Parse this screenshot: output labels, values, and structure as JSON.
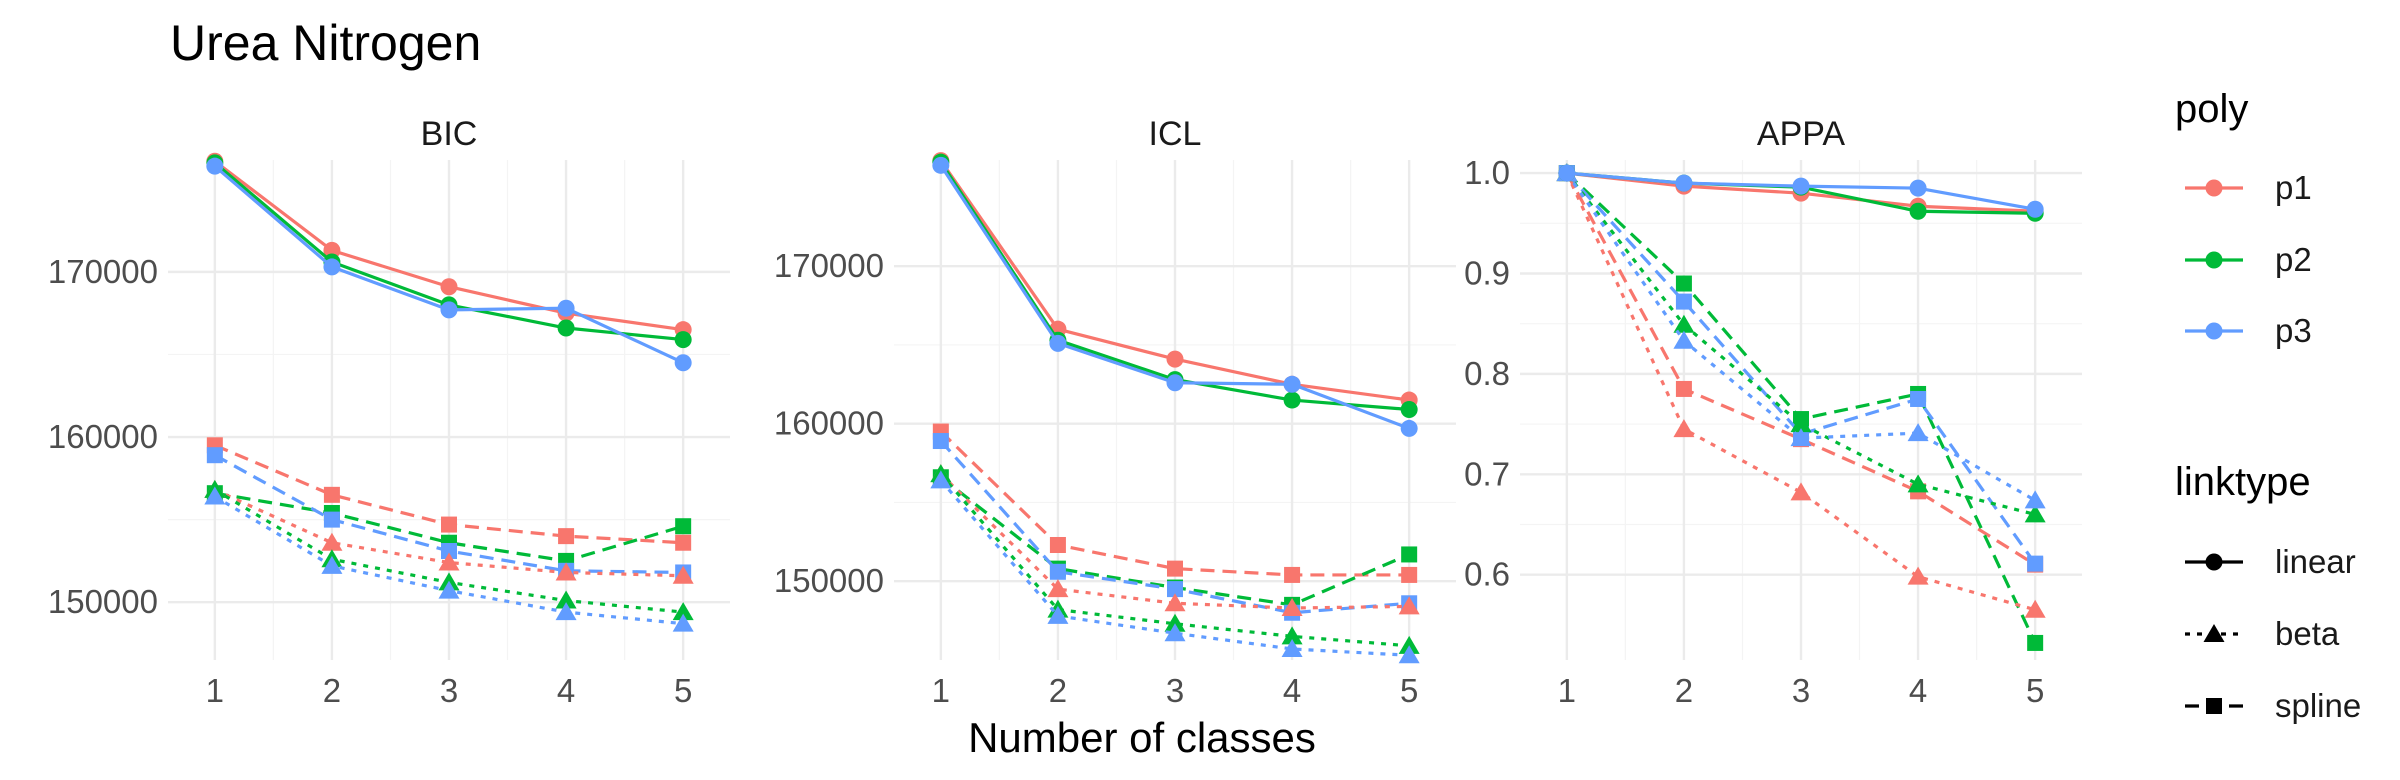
{
  "chart_data": {
    "type": "line",
    "title": "Urea Nitrogen",
    "xlabel": "Number of classes",
    "ylabel": "",
    "x": [
      1,
      2,
      3,
      4,
      5
    ],
    "colors": {
      "p1": "#F8766D",
      "p2": "#00BA38",
      "p3": "#619CFF"
    },
    "legend": {
      "placement": "right",
      "color_title": "poly",
      "color_entries": [
        "p1",
        "p2",
        "p3"
      ],
      "linetype_title": "linktype",
      "linetype_entries": [
        "linear",
        "beta",
        "spline"
      ]
    },
    "panels": [
      {
        "name": "BIC",
        "ylim": [
          146500,
          177500
        ],
        "yticks": [
          150000,
          160000,
          170000
        ],
        "ytick_labels": [
          "150000",
          "160000",
          "170000"
        ],
        "series": [
          {
            "poly": "p1",
            "link": "linear",
            "values": [
              176700,
              171300,
              169100,
              167500,
              166500
            ]
          },
          {
            "poly": "p2",
            "link": "linear",
            "values": [
              176600,
              170600,
              168000,
              166600,
              165900
            ]
          },
          {
            "poly": "p3",
            "link": "linear",
            "values": [
              176400,
              170300,
              167700,
              167800,
              164500
            ]
          },
          {
            "poly": "p1",
            "link": "beta",
            "values": [
              156800,
              153600,
              152400,
              151800,
              151600
            ]
          },
          {
            "poly": "p2",
            "link": "beta",
            "values": [
              156800,
              152600,
              151200,
              150100,
              149400
            ]
          },
          {
            "poly": "p3",
            "link": "beta",
            "values": [
              156400,
              152200,
              150700,
              149400,
              148700
            ]
          },
          {
            "poly": "p1",
            "link": "spline",
            "values": [
              159500,
              156500,
              154700,
              154000,
              153600
            ]
          },
          {
            "poly": "p2",
            "link": "spline",
            "values": [
              156600,
              155400,
              153600,
              152500,
              154600
            ]
          },
          {
            "poly": "p3",
            "link": "spline",
            "values": [
              158900,
              155000,
              153100,
              151900,
              151800
            ]
          }
        ]
      },
      {
        "name": "ICL",
        "ylim": [
          145000,
          177500
        ],
        "yticks": [
          150000,
          160000,
          170000
        ],
        "ytick_labels": [
          "150000",
          "160000",
          "170000"
        ],
        "series": [
          {
            "poly": "p1",
            "link": "linear",
            "values": [
              176700,
              166000,
              164100,
              162500,
              161500
            ]
          },
          {
            "poly": "p2",
            "link": "linear",
            "values": [
              176600,
              165300,
              162800,
              161500,
              160900
            ]
          },
          {
            "poly": "p3",
            "link": "linear",
            "values": [
              176400,
              165100,
              162600,
              162500,
              159700
            ]
          },
          {
            "poly": "p1",
            "link": "beta",
            "values": [
              156800,
              149500,
              148600,
              148300,
              148400
            ]
          },
          {
            "poly": "p2",
            "link": "beta",
            "values": [
              156800,
              148200,
              147300,
              146500,
              145900
            ]
          },
          {
            "poly": "p3",
            "link": "beta",
            "values": [
              156400,
              147800,
              146700,
              145700,
              145300
            ]
          },
          {
            "poly": "p1",
            "link": "spline",
            "values": [
              159500,
              152300,
              150800,
              150400,
              150400
            ]
          },
          {
            "poly": "p2",
            "link": "spline",
            "values": [
              156600,
              150800,
              149600,
              148500,
              151700
            ]
          },
          {
            "poly": "p3",
            "link": "spline",
            "values": [
              158900,
              150600,
              149500,
              148000,
              148600
            ]
          }
        ]
      },
      {
        "name": "APPA",
        "ylim": [
          0.515,
          1.025
        ],
        "yticks": [
          0.6,
          0.7,
          0.8,
          0.9,
          1.0
        ],
        "ytick_labels": [
          "0.6",
          "0.7",
          "0.8",
          "0.9",
          "1.0"
        ],
        "series": [
          {
            "poly": "p1",
            "link": "linear",
            "values": [
              1.0,
              0.987,
              0.98,
              0.967,
              0.962
            ]
          },
          {
            "poly": "p2",
            "link": "linear",
            "values": [
              1.0,
              0.99,
              0.986,
              0.962,
              0.96
            ]
          },
          {
            "poly": "p3",
            "link": "linear",
            "values": [
              1.0,
              0.99,
              0.987,
              0.985,
              0.964
            ]
          },
          {
            "poly": "p1",
            "link": "beta",
            "values": [
              1.0,
              0.745,
              0.682,
              0.598,
              0.565
            ]
          },
          {
            "poly": "p2",
            "link": "beta",
            "values": [
              1.0,
              0.849,
              0.75,
              0.69,
              0.66
            ]
          },
          {
            "poly": "p3",
            "link": "beta",
            "values": [
              1.0,
              0.833,
              0.736,
              0.741,
              0.674
            ]
          },
          {
            "poly": "p1",
            "link": "spline",
            "values": [
              1.0,
              0.785,
              0.735,
              0.683,
              0.61
            ]
          },
          {
            "poly": "p2",
            "link": "spline",
            "values": [
              1.0,
              0.89,
              0.755,
              0.78,
              0.532
            ]
          },
          {
            "poly": "p3",
            "link": "spline",
            "values": [
              1.0,
              0.872,
              0.74,
              0.775,
              0.611
            ]
          }
        ]
      }
    ]
  }
}
